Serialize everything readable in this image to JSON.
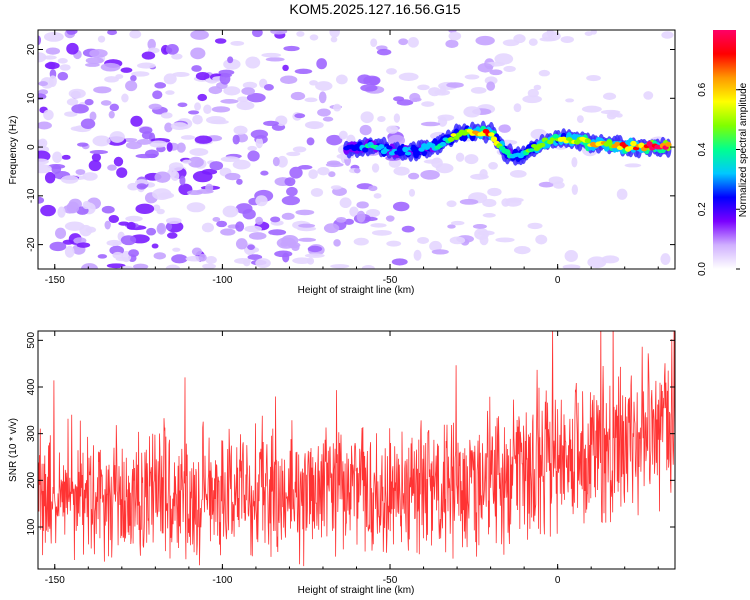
{
  "title": "KOM5.2025.127.16.56.G15",
  "chart_data": [
    {
      "type": "heatmap",
      "xlabel": "Height of straight line (km)",
      "ylabel": "Frequency (Hz)",
      "xlim": [
        -155,
        35
      ],
      "ylim": [
        -25,
        24
      ],
      "xticks": [
        -150,
        -100,
        -50,
        0
      ],
      "yticks": [
        -20,
        -10,
        0,
        10,
        20
      ],
      "colorbar": {
        "label": "Normalized spectral amplitude",
        "range": [
          0,
          0.8
        ],
        "ticks": [
          0.0,
          0.2,
          0.4,
          0.6
        ],
        "colors": [
          "#ffffff",
          "#d0b0ff",
          "#7a00ff",
          "#0000ff",
          "#00c8ff",
          "#00ff90",
          "#80ff00",
          "#ffff00",
          "#ff9900",
          "#ff0000",
          "#ff0066"
        ]
      },
      "ridge": {
        "x": [
          -63,
          -55,
          -48,
          -42,
          -36,
          -30,
          -25,
          -20,
          -16,
          -12,
          -8,
          -4,
          0,
          5,
          10,
          15,
          20,
          25,
          30,
          33
        ],
        "y": [
          -0.5,
          0.2,
          -1.0,
          -0.8,
          0.3,
          2.5,
          3.0,
          3.2,
          -1.0,
          -2.0,
          -0.5,
          0.8,
          1.8,
          1.5,
          0.8,
          0.5,
          0.2,
          0.1,
          0.0,
          0.0
        ],
        "amplitude": [
          0.25,
          0.3,
          0.28,
          0.3,
          0.35,
          0.45,
          0.55,
          0.65,
          0.35,
          0.3,
          0.4,
          0.45,
          0.5,
          0.55,
          0.6,
          0.55,
          0.6,
          0.65,
          0.75,
          0.8
        ]
      }
    },
    {
      "type": "line",
      "xlabel": "Height of straight line (km)",
      "ylabel": "SNR (10 * v/v)",
      "xlim": [
        -155,
        35
      ],
      "ylim": [
        10,
        520
      ],
      "xticks": [
        -150,
        -100,
        -50,
        0
      ],
      "yticks": [
        100,
        200,
        300,
        400,
        500
      ],
      "color": "#ff3333",
      "trend": {
        "x": [
          -155,
          -100,
          -50,
          -20,
          0,
          20,
          35
        ],
        "y": [
          160,
          165,
          175,
          200,
          240,
          280,
          310
        ]
      },
      "spread": {
        "x": [
          -155,
          -100,
          -50,
          0,
          35
        ],
        "y": [
          110,
          115,
          120,
          130,
          140
        ]
      }
    }
  ]
}
